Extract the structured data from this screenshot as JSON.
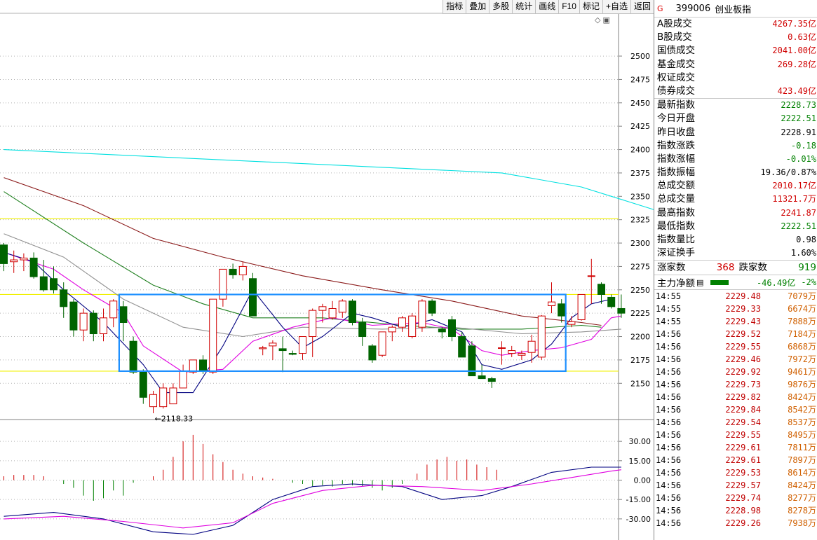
{
  "toolbar": [
    {
      "label": "指标",
      "name": "toolbar-indicator-button"
    },
    {
      "label": "叠加",
      "name": "toolbar-overlay-button"
    },
    {
      "label": "多股",
      "name": "toolbar-multi-stock-button"
    },
    {
      "label": "统计",
      "name": "toolbar-statistics-button"
    },
    {
      "label": "画线",
      "name": "toolbar-draw-line-button"
    },
    {
      "label": "F10",
      "name": "toolbar-f10-button"
    },
    {
      "label": "标记",
      "name": "toolbar-mark-button"
    },
    {
      "label": "+自选",
      "name": "toolbar-add-watchlist-button"
    },
    {
      "label": "返回",
      "name": "toolbar-back-button"
    }
  ],
  "chart_icons": {
    "diamond": "◇",
    "square": "▣"
  },
  "chart_data": {
    "type": "candlestick",
    "price_axis": {
      "ticks": [
        2500,
        2475,
        2450,
        2425,
        2400,
        2375,
        2350,
        2325,
        2300,
        2275,
        2250,
        2225,
        2200,
        2175,
        2150
      ],
      "range": [
        2112,
        2545
      ]
    },
    "low_annotation": "←2118.33",
    "horizontal_lines": [
      2326,
      2245,
      2163
    ],
    "highlight_box": {
      "from_candle": 12,
      "to_candle": 56,
      "price_high": 2245,
      "price_low": 2163,
      "color": "#1e90ff"
    },
    "candles": [
      [
        2298,
        2300,
        2270,
        2278
      ],
      [
        2280,
        2292,
        2268,
        2282
      ],
      [
        2282,
        2289,
        2270,
        2284
      ],
      [
        2284,
        2290,
        2262,
        2264
      ],
      [
        2264,
        2282,
        2248,
        2250
      ],
      [
        2262,
        2275,
        2246,
        2250
      ],
      [
        2250,
        2258,
        2220,
        2232
      ],
      [
        2237,
        2240,
        2200,
        2207
      ],
      [
        2207,
        2230,
        2195,
        2225
      ],
      [
        2225,
        2228,
        2195,
        2203
      ],
      [
        2203,
        2230,
        2195,
        2220
      ],
      [
        2220,
        2240,
        2210,
        2238
      ],
      [
        2232,
        2238,
        2195,
        2215
      ],
      [
        2195,
        2200,
        2160,
        2162
      ],
      [
        2162,
        2165,
        2128,
        2135
      ],
      [
        2125,
        2142,
        2118,
        2138
      ],
      [
        2125,
        2150,
        2123,
        2145
      ],
      [
        2128,
        2150,
        2128,
        2145
      ],
      [
        2145,
        2170,
        2145,
        2163
      ],
      [
        2162,
        2175,
        2160,
        2175
      ],
      [
        2175,
        2180,
        2160,
        2163
      ],
      [
        2162,
        2240,
        2160,
        2240
      ],
      [
        2240,
        2272,
        2232,
        2272
      ],
      [
        2272,
        2278,
        2262,
        2266
      ],
      [
        2266,
        2280,
        2260,
        2275
      ],
      [
        2262,
        2268,
        2222,
        2222
      ],
      [
        2187,
        2190,
        2180,
        2188
      ],
      [
        2190,
        2196,
        2175,
        2193
      ],
      [
        2187,
        2200,
        2162,
        2185
      ],
      [
        2182,
        2185,
        2180,
        2181
      ],
      [
        2182,
        2200,
        2175,
        2200
      ],
      [
        2200,
        2230,
        2178,
        2228
      ],
      [
        2228,
        2235,
        2215,
        2232
      ],
      [
        2220,
        2238,
        2218,
        2230
      ],
      [
        2226,
        2240,
        2220,
        2238
      ],
      [
        2238,
        2240,
        2212,
        2215
      ],
      [
        2215,
        2220,
        2190,
        2200
      ],
      [
        2190,
        2192,
        2172,
        2175
      ],
      [
        2180,
        2205,
        2178,
        2205
      ],
      [
        2205,
        2212,
        2195,
        2210
      ],
      [
        2210,
        2222,
        2205,
        2220
      ],
      [
        2200,
        2225,
        2198,
        2222
      ],
      [
        2210,
        2240,
        2205,
        2238
      ],
      [
        2238,
        2240,
        2222,
        2225
      ],
      [
        2208,
        2210,
        2198,
        2205
      ],
      [
        2218,
        2222,
        2195,
        2200
      ],
      [
        2200,
        2205,
        2178,
        2178
      ],
      [
        2190,
        2195,
        2158,
        2158
      ],
      [
        2158,
        2170,
        2155,
        2155
      ],
      [
        2155,
        2157,
        2145,
        2152
      ],
      [
        2188,
        2195,
        2170,
        2188
      ],
      [
        2182,
        2190,
        2178,
        2185
      ],
      [
        2180,
        2185,
        2175,
        2182
      ],
      [
        2183,
        2202,
        2172,
        2195
      ],
      [
        2178,
        2223,
        2175,
        2222
      ],
      [
        2233,
        2258,
        2225,
        2237
      ],
      [
        2235,
        2240,
        2215,
        2222
      ],
      [
        2213,
        2222,
        2210,
        2216
      ],
      [
        2218,
        2245,
        2217,
        2245
      ],
      [
        2265,
        2283,
        2235,
        2265
      ],
      [
        2256,
        2258,
        2235,
        2245
      ],
      [
        2242,
        2245,
        2230,
        2232
      ],
      [
        2230,
        2245,
        2220,
        2225
      ]
    ],
    "moving_averages": [
      {
        "color": "#00e0e0",
        "points": [
          [
            0,
            2400
          ],
          [
            30,
            2385
          ],
          [
            50,
            2375
          ],
          [
            58,
            2360
          ],
          [
            64,
            2340
          ],
          [
            70,
            2320
          ],
          [
            74,
            2305
          ],
          [
            78,
            2295
          ]
        ]
      },
      {
        "color": "#8b1a1a",
        "points": [
          [
            0,
            2370
          ],
          [
            8,
            2340
          ],
          [
            15,
            2305
          ],
          [
            22,
            2285
          ],
          [
            30,
            2265
          ],
          [
            38,
            2250
          ],
          [
            45,
            2238
          ],
          [
            52,
            2222
          ],
          [
            58,
            2215
          ],
          [
            60,
            2212
          ]
        ]
      },
      {
        "color": "#208020",
        "points": [
          [
            0,
            2355
          ],
          [
            8,
            2300
          ],
          [
            15,
            2255
          ],
          [
            20,
            2235
          ],
          [
            25,
            2220
          ],
          [
            32,
            2220
          ],
          [
            40,
            2212
          ],
          [
            46,
            2208
          ],
          [
            52,
            2208
          ],
          [
            58,
            2212
          ],
          [
            60,
            2210
          ]
        ]
      },
      {
        "color": "#909090",
        "points": [
          [
            0,
            2310
          ],
          [
            6,
            2285
          ],
          [
            12,
            2240
          ],
          [
            18,
            2210
          ],
          [
            24,
            2200
          ],
          [
            30,
            2210
          ],
          [
            38,
            2208
          ],
          [
            45,
            2210
          ],
          [
            52,
            2203
          ],
          [
            58,
            2205
          ],
          [
            62,
            2208
          ]
        ]
      },
      {
        "color": "#e000e0",
        "points": [
          [
            0,
            2290
          ],
          [
            5,
            2272
          ],
          [
            8,
            2250
          ],
          [
            12,
            2225
          ],
          [
            14,
            2190
          ],
          [
            18,
            2162
          ],
          [
            22,
            2165
          ],
          [
            25,
            2195
          ],
          [
            29,
            2210
          ],
          [
            33,
            2220
          ],
          [
            37,
            2212
          ],
          [
            42,
            2215
          ],
          [
            45,
            2208
          ],
          [
            48,
            2185
          ],
          [
            50,
            2180
          ],
          [
            53,
            2185
          ],
          [
            56,
            2188
          ],
          [
            59,
            2197
          ],
          [
            61,
            2220
          ],
          [
            62,
            2222
          ]
        ]
      },
      {
        "color": "#000080",
        "points": [
          [
            0,
            2290
          ],
          [
            3,
            2280
          ],
          [
            6,
            2250
          ],
          [
            10,
            2215
          ],
          [
            14,
            2170
          ],
          [
            16,
            2140
          ],
          [
            19,
            2140
          ],
          [
            22,
            2190
          ],
          [
            25,
            2250
          ],
          [
            28,
            2210
          ],
          [
            30,
            2188
          ],
          [
            32,
            2200
          ],
          [
            35,
            2225
          ],
          [
            37,
            2220
          ],
          [
            40,
            2210
          ],
          [
            43,
            2218
          ],
          [
            46,
            2205
          ],
          [
            48,
            2170
          ],
          [
            50,
            2165
          ],
          [
            53,
            2175
          ],
          [
            55,
            2192
          ],
          [
            57,
            2220
          ],
          [
            59,
            2235
          ],
          [
            61,
            2240
          ]
        ]
      }
    ],
    "indicator": {
      "axis_ticks": [
        30,
        15,
        0,
        -15,
        -30
      ],
      "range": [
        -42,
        42
      ],
      "bars": [
        3,
        4,
        4,
        4,
        3,
        0,
        -3,
        -6,
        -12,
        -16,
        -14,
        -8,
        -12,
        -2,
        0,
        3,
        8,
        18,
        30,
        35,
        28,
        20,
        14,
        8,
        5,
        3,
        2,
        1,
        0,
        -2,
        -3,
        -5,
        -4,
        -5,
        -3,
        -4,
        -5,
        -6,
        -8,
        -6,
        -3,
        5,
        12,
        16,
        18,
        15,
        16,
        12,
        10,
        8
      ],
      "bar_start_candle": 0,
      "lines": [
        {
          "color": "#000080",
          "points": [
            [
              0,
              -28
            ],
            [
              5,
              -25
            ],
            [
              10,
              -30
            ],
            [
              15,
              -40
            ],
            [
              19,
              -42
            ],
            [
              23,
              -35
            ],
            [
              27,
              -15
            ],
            [
              31,
              -5
            ],
            [
              35,
              -3
            ],
            [
              40,
              -5
            ],
            [
              44,
              -15
            ],
            [
              48,
              -12
            ],
            [
              51,
              -5
            ],
            [
              55,
              6
            ],
            [
              59,
              10
            ],
            [
              62,
              10
            ]
          ]
        },
        {
          "color": "#e000e0",
          "points": [
            [
              0,
              -30
            ],
            [
              6,
              -28
            ],
            [
              12,
              -32
            ],
            [
              18,
              -37
            ],
            [
              23,
              -33
            ],
            [
              27,
              -18
            ],
            [
              32,
              -8
            ],
            [
              37,
              -4
            ],
            [
              42,
              -5
            ],
            [
              48,
              -8
            ],
            [
              53,
              -3
            ],
            [
              57,
              2
            ],
            [
              61,
              7
            ],
            [
              62,
              8
            ]
          ]
        }
      ]
    }
  },
  "sidepanel": {
    "title": {
      "badge": "G",
      "code": "399006",
      "name": "创业板指"
    },
    "rows": [
      {
        "label": "A股成交",
        "value": "4267.35亿",
        "color": "red"
      },
      {
        "label": "B股成交",
        "value": "0.63亿",
        "color": "red"
      },
      {
        "label": "国债成交",
        "value": "2041.00亿",
        "color": "red"
      },
      {
        "label": "基金成交",
        "value": "269.28亿",
        "color": "red"
      },
      {
        "label": "权证成交",
        "value": "",
        "color": "red"
      },
      {
        "label": "债券成交",
        "value": "423.49亿",
        "color": "red"
      },
      {
        "label": "最新指数",
        "value": "2228.73",
        "color": "green",
        "sep": true
      },
      {
        "label": "今日开盘",
        "value": "2222.51",
        "color": "green"
      },
      {
        "label": "昨日收盘",
        "value": "2228.91",
        "color": "black"
      },
      {
        "label": "指数涨跌",
        "value": "-0.18",
        "color": "green"
      },
      {
        "label": "指数涨幅",
        "value": "-0.01%",
        "color": "green"
      },
      {
        "label": "指数振幅",
        "value": "19.36/0.87%",
        "color": "black"
      },
      {
        "label": "总成交额",
        "value": "2010.17亿",
        "color": "red"
      },
      {
        "label": "总成交量",
        "value": "11321.7万",
        "color": "red"
      },
      {
        "label": "最高指数",
        "value": "2241.87",
        "color": "red"
      },
      {
        "label": "最低指数",
        "value": "2222.51",
        "color": "green"
      },
      {
        "label": "指数量比",
        "value": "0.98",
        "color": "black"
      },
      {
        "label": "深证换手",
        "value": "1.60%",
        "color": "black"
      }
    ],
    "advance": {
      "up_label": "涨家数",
      "up_value": "368",
      "down_label": "跌家数",
      "down_value": "919"
    },
    "mainforce": {
      "label": "主力净额",
      "icon": "▤",
      "value": "-46.49亿",
      "pct": "-2%"
    },
    "ticks": [
      {
        "t": "14:55",
        "p": "2229.48",
        "v": "7079万"
      },
      {
        "t": "14:55",
        "p": "2229.33",
        "v": "6674万"
      },
      {
        "t": "14:55",
        "p": "2229.43",
        "v": "7888万"
      },
      {
        "t": "14:56",
        "p": "2229.52",
        "v": "7184万"
      },
      {
        "t": "14:56",
        "p": "2229.55",
        "v": "6868万"
      },
      {
        "t": "14:56",
        "p": "2229.46",
        "v": "7972万"
      },
      {
        "t": "14:56",
        "p": "2229.92",
        "v": "9461万"
      },
      {
        "t": "14:56",
        "p": "2229.73",
        "v": "9876万"
      },
      {
        "t": "14:56",
        "p": "2229.82",
        "v": "8424万"
      },
      {
        "t": "14:56",
        "p": "2229.84",
        "v": "8542万"
      },
      {
        "t": "14:56",
        "p": "2229.54",
        "v": "8537万"
      },
      {
        "t": "14:56",
        "p": "2229.55",
        "v": "8495万"
      },
      {
        "t": "14:56",
        "p": "2229.61",
        "v": "7811万"
      },
      {
        "t": "14:56",
        "p": "2229.61",
        "v": "7897万"
      },
      {
        "t": "14:56",
        "p": "2229.53",
        "v": "8614万"
      },
      {
        "t": "14:56",
        "p": "2229.57",
        "v": "8424万"
      },
      {
        "t": "14:56",
        "p": "2229.74",
        "v": "8277万"
      },
      {
        "t": "14:56",
        "p": "2228.98",
        "v": "8278万"
      },
      {
        "t": "14:56",
        "p": "2229.26",
        "v": "7938万"
      }
    ]
  }
}
